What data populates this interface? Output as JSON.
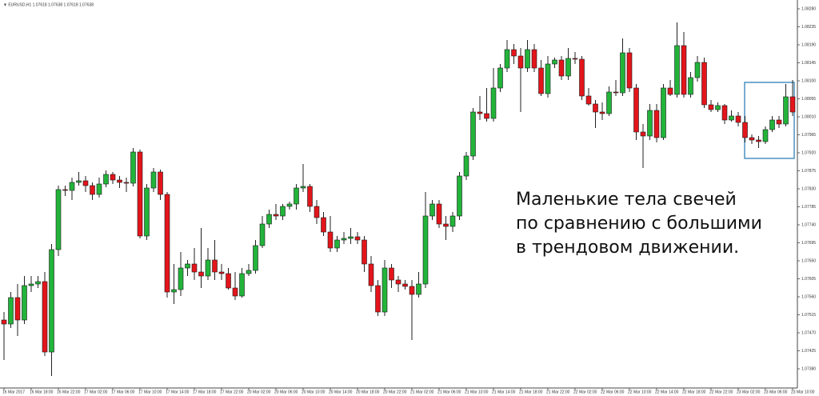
{
  "chart_data": {
    "type": "candlestick",
    "title": "▼ EURUSD,H1 1.07618 1.07638 1.07618 1.07638",
    "annotation": [
      "Маленькие тела свечей",
      "по сравнению с большими",
      "в трендовом движении."
    ],
    "up_color": "#22b43a",
    "down_color": "#e3151b",
    "grid": false,
    "ylim": [
      1.07332,
      1.08302
    ],
    "yticks": [
      {
        "value": 1.0828,
        "label": "1.08280"
      },
      {
        "value": 1.08235,
        "label": "1.08235"
      },
      {
        "value": 1.0819,
        "label": "1.08190"
      },
      {
        "value": 1.08145,
        "label": "1.08145"
      },
      {
        "value": 1.081,
        "label": "1.08100"
      },
      {
        "value": 1.08055,
        "label": "1.08055"
      },
      {
        "value": 1.0801,
        "label": "1.08010"
      },
      {
        "value": 1.07965,
        "label": "1.07965"
      },
      {
        "value": 1.0792,
        "label": "1.07920"
      },
      {
        "value": 1.07875,
        "label": "1.07875"
      },
      {
        "value": 1.0783,
        "label": "1.07830"
      },
      {
        "value": 1.07785,
        "label": "1.07785"
      },
      {
        "value": 1.0774,
        "label": "1.07740"
      },
      {
        "value": 1.07695,
        "label": "1.07695"
      },
      {
        "value": 1.0765,
        "label": "1.07650"
      },
      {
        "value": 1.07605,
        "label": "1.07605"
      },
      {
        "value": 1.0756,
        "label": "1.07560"
      },
      {
        "value": 1.07515,
        "label": "1.07515"
      },
      {
        "value": 1.0747,
        "label": "1.07470"
      },
      {
        "value": 1.07425,
        "label": "1.07425"
      },
      {
        "value": 1.0738,
        "label": "1.07380"
      }
    ],
    "categories": [
      "16 Mar 2017",
      null,
      null,
      null,
      "16 Mar 18:00",
      null,
      null,
      null,
      "16 Mar 22:00",
      null,
      null,
      null,
      "17 Mar 02:00",
      null,
      null,
      null,
      "17 Mar 06:00",
      null,
      null,
      null,
      "17 Mar 10:00",
      null,
      null,
      null,
      "17 Mar 14:00",
      null,
      null,
      null,
      "17 Mar 18:00",
      null,
      null,
      null,
      "17 Mar 22:00",
      null,
      null,
      null,
      "20 Mar 02:00",
      null,
      null,
      null,
      "20 Mar 06:00",
      null,
      null,
      null,
      "20 Mar 10:00",
      null,
      null,
      null,
      "20 Mar 14:00",
      null,
      null,
      null,
      "20 Mar 18:00",
      null,
      null,
      null,
      "20 Mar 22:00",
      null,
      null,
      null,
      "21 Mar 02:00",
      null,
      null,
      null,
      "21 Mar 06:00",
      null,
      null,
      null,
      "21 Mar 10:00",
      null,
      null,
      null,
      "21 Mar 14:00",
      null,
      null,
      null,
      "21 Mar 18:00",
      null,
      null,
      null,
      "21 Mar 22:00",
      null,
      null,
      null,
      "22 Mar 02:00",
      null,
      null,
      null,
      "22 Mar 06:00",
      null,
      null,
      null,
      "22 Mar 10:00",
      null,
      null,
      null,
      "22 Mar 14:00",
      null,
      null,
      null,
      "22 Mar 18:00",
      null,
      null,
      null,
      "22 Mar 22:00",
      null,
      null,
      null,
      "23 Mar 02:00",
      null,
      null,
      null,
      "23 Mar 06:00",
      null,
      null,
      null,
      "23 Mar 10:00"
    ],
    "open": [
      1.07502,
      1.07492,
      1.07558,
      1.07502,
      1.07588,
      1.07592,
      1.07598,
      1.07422,
      1.07678,
      1.07828,
      1.07826,
      1.07846,
      1.0785,
      1.07838,
      1.07816,
      1.07842,
      1.07866,
      1.07852,
      1.07846,
      1.07844,
      1.07922,
      1.07712,
      1.07832,
      1.07872,
      1.07816,
      1.07572,
      1.07578,
      1.07632,
      1.07642,
      1.07622,
      1.07612,
      1.07652,
      1.07622,
      1.07618,
      1.07582,
      1.07562,
      1.07618,
      1.07626,
      1.07688,
      1.07742,
      1.07766,
      1.07762,
      1.07786,
      1.07792,
      1.07832,
      1.07836,
      1.07786,
      1.07758,
      1.07722,
      1.07682,
      1.07702,
      1.07706,
      1.0771,
      1.07702,
      1.07642,
      1.07588,
      1.07522,
      1.07632,
      1.07602,
      1.07592,
      1.07586,
      1.07566,
      1.07592,
      1.07762,
      1.07792,
      1.07742,
      1.07736,
      1.07762,
      1.07862,
      1.07912,
      1.08022,
      1.08018,
      1.08006,
      1.08082,
      1.08132,
      1.08178,
      1.08162,
      1.08132,
      1.08178,
      1.08132,
      1.08068,
      1.08142,
      1.08152,
      1.08112,
      1.08156,
      1.08154,
      1.08062,
      1.08042,
      1.08022,
      1.08018,
      1.08072,
      1.0807,
      1.0817,
      1.08082,
      1.07972,
      1.07962,
      1.08026,
      1.07958,
      1.08082,
      1.08066,
      1.08188,
      1.08066,
      1.08108,
      1.08146,
      1.0804,
      1.08028,
      1.08038,
      1.08002,
      1.08012,
      1.07996,
      1.07958,
      1.07952,
      1.07948,
      1.07978,
      1.08002,
      1.07992,
      1.0806
    ],
    "high": [
      1.07522,
      1.07572,
      1.07592,
      1.07612,
      1.07612,
      1.07612,
      1.07622,
      1.07692,
      1.07838,
      1.07838,
      1.07858,
      1.07872,
      1.07862,
      1.07846,
      1.07858,
      1.07876,
      1.07872,
      1.07862,
      1.07858,
      1.07932,
      1.07928,
      1.07842,
      1.07882,
      1.07878,
      1.07822,
      1.07642,
      1.07672,
      1.07652,
      1.07682,
      1.07732,
      1.07682,
      1.07702,
      1.07642,
      1.07632,
      1.07622,
      1.07632,
      1.07642,
      1.07702,
      1.07762,
      1.07778,
      1.07792,
      1.07792,
      1.07798,
      1.07842,
      1.07892,
      1.07842,
      1.07802,
      1.07772,
      1.07762,
      1.07712,
      1.07722,
      1.07732,
      1.07722,
      1.07712,
      1.07662,
      1.07602,
      1.07652,
      1.07642,
      1.07612,
      1.07602,
      1.07602,
      1.07622,
      1.07822,
      1.07802,
      1.07802,
      1.07762,
      1.07772,
      1.07872,
      1.07922,
      1.08032,
      1.08062,
      1.08082,
      1.08132,
      1.08142,
      1.08202,
      1.08192,
      1.08182,
      1.08202,
      1.08192,
      1.08152,
      1.08162,
      1.08158,
      1.08162,
      1.08182,
      1.08172,
      1.08162,
      1.08082,
      1.08052,
      1.08046,
      1.08086,
      1.08102,
      1.08206,
      1.08182,
      1.08092,
      1.07992,
      1.08042,
      1.08042,
      1.08092,
      1.08102,
      1.08246,
      1.08222,
      1.08122,
      1.08162,
      1.08158,
      1.08052,
      1.08046,
      1.08042,
      1.08026,
      1.08022,
      1.08012,
      1.07966,
      1.07962,
      1.07986,
      1.08012,
      1.08012,
      1.08092,
      1.08102
    ],
    "low": [
      1.07402,
      1.07482,
      1.07462,
      1.07492,
      1.07572,
      1.07582,
      1.07412,
      1.07362,
      1.07662,
      1.07812,
      1.07802,
      1.07838,
      1.07822,
      1.07802,
      1.07808,
      1.07834,
      1.07842,
      1.07832,
      1.07822,
      1.07836,
      1.07706,
      1.07702,
      1.07822,
      1.07802,
      1.07558,
      1.07542,
      1.07562,
      1.07612,
      1.07602,
      1.07582,
      1.07602,
      1.07602,
      1.07602,
      1.07578,
      1.07552,
      1.07558,
      1.07612,
      1.07618,
      1.07682,
      1.07732,
      1.07752,
      1.07752,
      1.07778,
      1.07778,
      1.07822,
      1.07772,
      1.07742,
      1.07712,
      1.07672,
      1.07672,
      1.07692,
      1.07692,
      1.07692,
      1.07622,
      1.07572,
      1.07512,
      1.07512,
      1.07582,
      1.07572,
      1.07578,
      1.07452,
      1.07558,
      1.07582,
      1.07752,
      1.07732,
      1.07702,
      1.07722,
      1.07752,
      1.07852,
      1.07902,
      1.08002,
      1.07998,
      1.07998,
      1.08072,
      1.08122,
      1.08142,
      1.08022,
      1.08122,
      1.08122,
      1.08062,
      1.08058,
      1.08132,
      1.08102,
      1.08102,
      1.08142,
      1.08052,
      1.08038,
      1.07982,
      1.08002,
      1.08012,
      1.08062,
      1.08062,
      1.08072,
      1.07952,
      1.07882,
      1.07952,
      1.07946,
      1.07952,
      1.08062,
      1.08058,
      1.08058,
      1.08058,
      1.08098,
      1.08032,
      1.08022,
      1.08022,
      1.07992,
      1.07998,
      1.07986,
      1.07946,
      1.07942,
      1.07932,
      1.07942,
      1.07972,
      1.07982,
      1.07986,
      1.08012
    ],
    "close": [
      1.07492,
      1.07558,
      1.07502,
      1.07588,
      1.07592,
      1.07598,
      1.07422,
      1.07678,
      1.07828,
      1.07826,
      1.07846,
      1.0785,
      1.07838,
      1.07816,
      1.07842,
      1.07866,
      1.07852,
      1.07846,
      1.07844,
      1.07922,
      1.07712,
      1.07832,
      1.07872,
      1.07816,
      1.07572,
      1.07578,
      1.07632,
      1.07642,
      1.07622,
      1.07612,
      1.07652,
      1.07622,
      1.07618,
      1.07582,
      1.07562,
      1.07618,
      1.07626,
      1.07688,
      1.07742,
      1.07766,
      1.07762,
      1.07786,
      1.07792,
      1.07832,
      1.07836,
      1.07786,
      1.07758,
      1.07722,
      1.07682,
      1.07702,
      1.07706,
      1.0771,
      1.07702,
      1.07642,
      1.07588,
      1.07522,
      1.07632,
      1.07602,
      1.07592,
      1.07586,
      1.07566,
      1.07592,
      1.07762,
      1.07792,
      1.07742,
      1.07736,
      1.07762,
      1.07862,
      1.07912,
      1.08022,
      1.08018,
      1.08006,
      1.08082,
      1.08132,
      1.08178,
      1.08162,
      1.08132,
      1.08178,
      1.08132,
      1.08068,
      1.08142,
      1.08152,
      1.08112,
      1.08156,
      1.08154,
      1.08062,
      1.08042,
      1.08022,
      1.08018,
      1.08072,
      1.0807,
      1.0817,
      1.08082,
      1.07972,
      1.07962,
      1.08026,
      1.07958,
      1.08082,
      1.08066,
      1.08188,
      1.08066,
      1.08108,
      1.08146,
      1.0804,
      1.08028,
      1.08038,
      1.08002,
      1.08012,
      1.07996,
      1.07958,
      1.07952,
      1.07948,
      1.07978,
      1.08002,
      1.07992,
      1.0806,
      1.08022
    ]
  }
}
